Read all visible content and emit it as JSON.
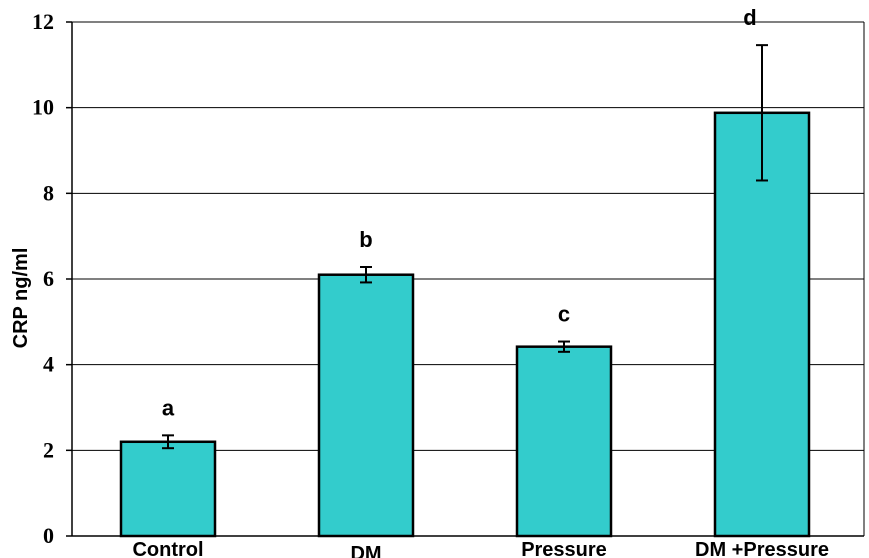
{
  "chart_data": {
    "type": "bar",
    "title": "",
    "xlabel": "",
    "ylabel": "CRP ng/ml",
    "ylim": [
      0,
      12
    ],
    "yticks": [
      0,
      2,
      4,
      6,
      8,
      10,
      12
    ],
    "grid": true,
    "categories": [
      "Control",
      "DM",
      "Pressure",
      "DM +Pressure"
    ],
    "values": [
      2.2,
      6.1,
      4.42,
      9.88
    ],
    "errors": [
      0.15,
      0.18,
      0.12,
      1.58
    ],
    "significance_labels": [
      "a",
      "b",
      "c",
      "d"
    ],
    "bar_color": "#33CCCC",
    "edge_color": "#000000"
  }
}
